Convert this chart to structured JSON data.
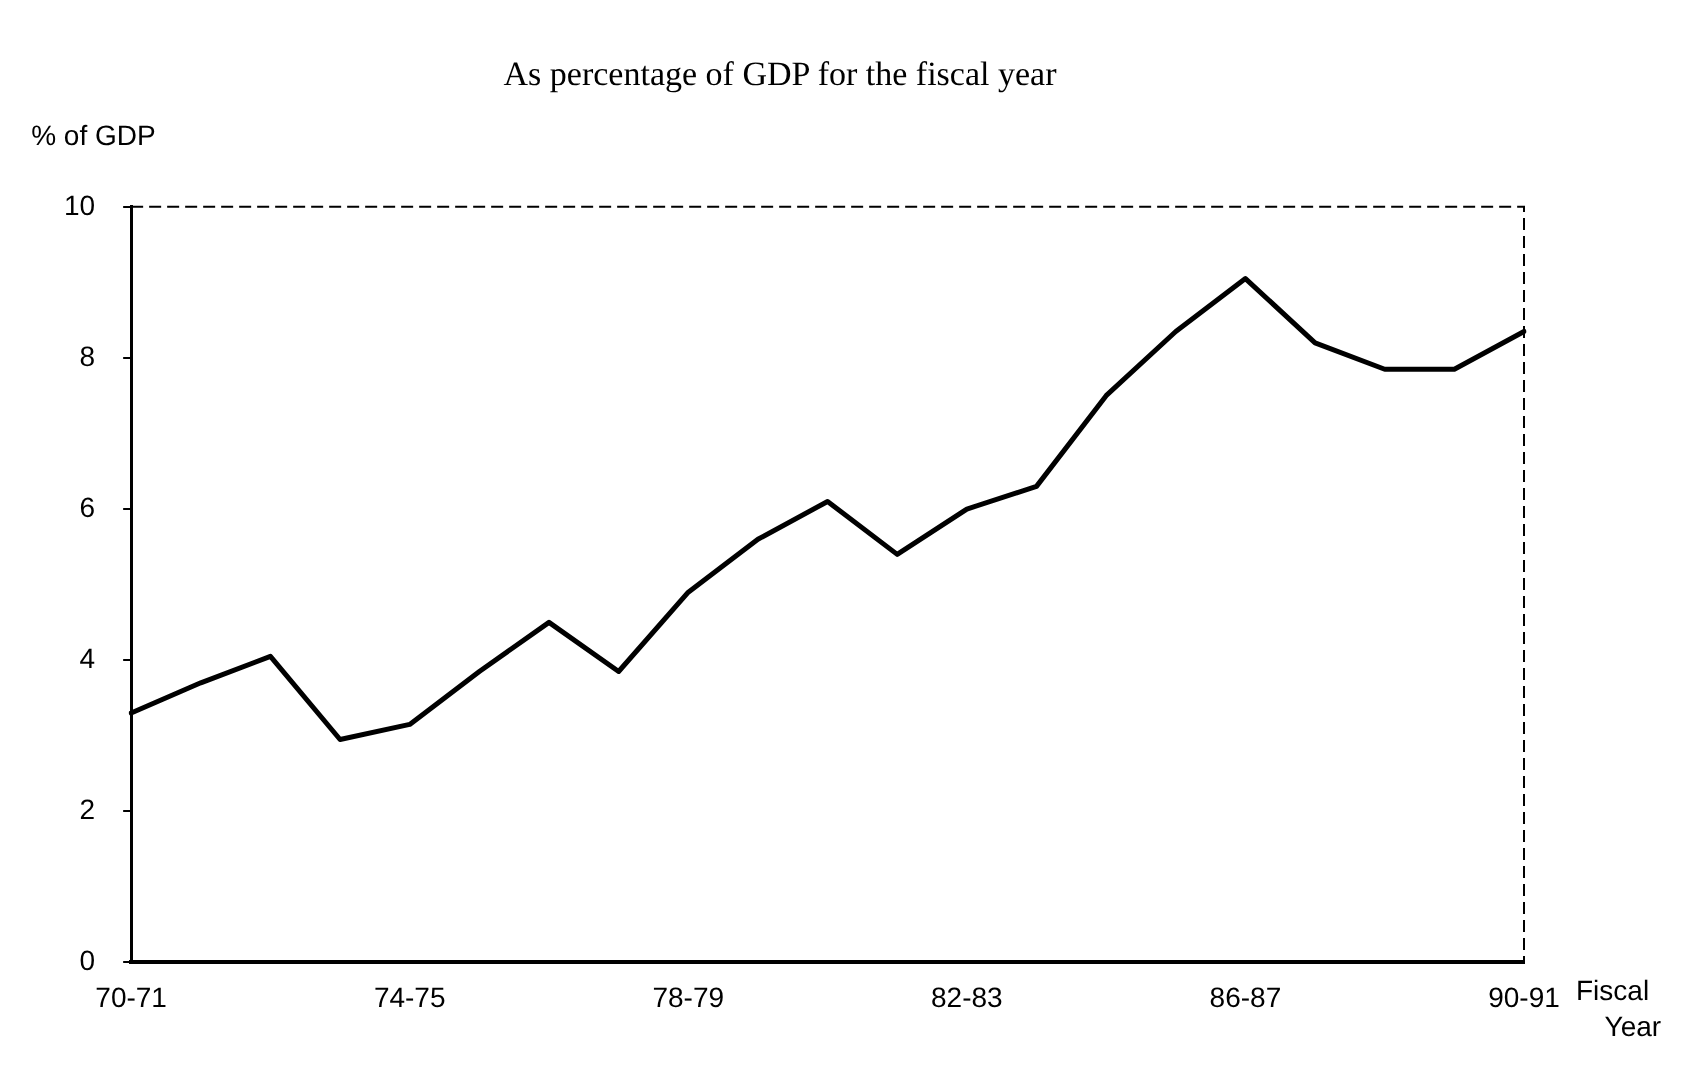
{
  "chart_data": {
    "type": "line",
    "title": "As percentage of GDP for the fiscal year",
    "ylabel": "% of GDP",
    "xlabel": "Fiscal Year",
    "categories": [
      "70-71",
      null,
      null,
      null,
      "74-75",
      null,
      null,
      null,
      "78-79",
      null,
      null,
      null,
      "82-83",
      null,
      null,
      null,
      "86-87",
      null,
      null,
      null,
      "90-91"
    ],
    "series": [
      {
        "color": "#000000",
        "values": [
          3.3,
          3.7,
          4.05,
          2.95,
          3.15,
          3.85,
          4.5,
          3.85,
          4.9,
          5.6,
          6.1,
          5.4,
          6.0,
          6.3,
          7.5,
          8.35,
          9.05,
          8.2,
          7.85,
          7.85,
          8.35
        ]
      }
    ],
    "ylim": [
      0,
      10
    ],
    "yticks": [
      0,
      2,
      4,
      6,
      8,
      10
    ],
    "grid": false,
    "legend": false,
    "marker": "none",
    "line_style": "solid"
  }
}
